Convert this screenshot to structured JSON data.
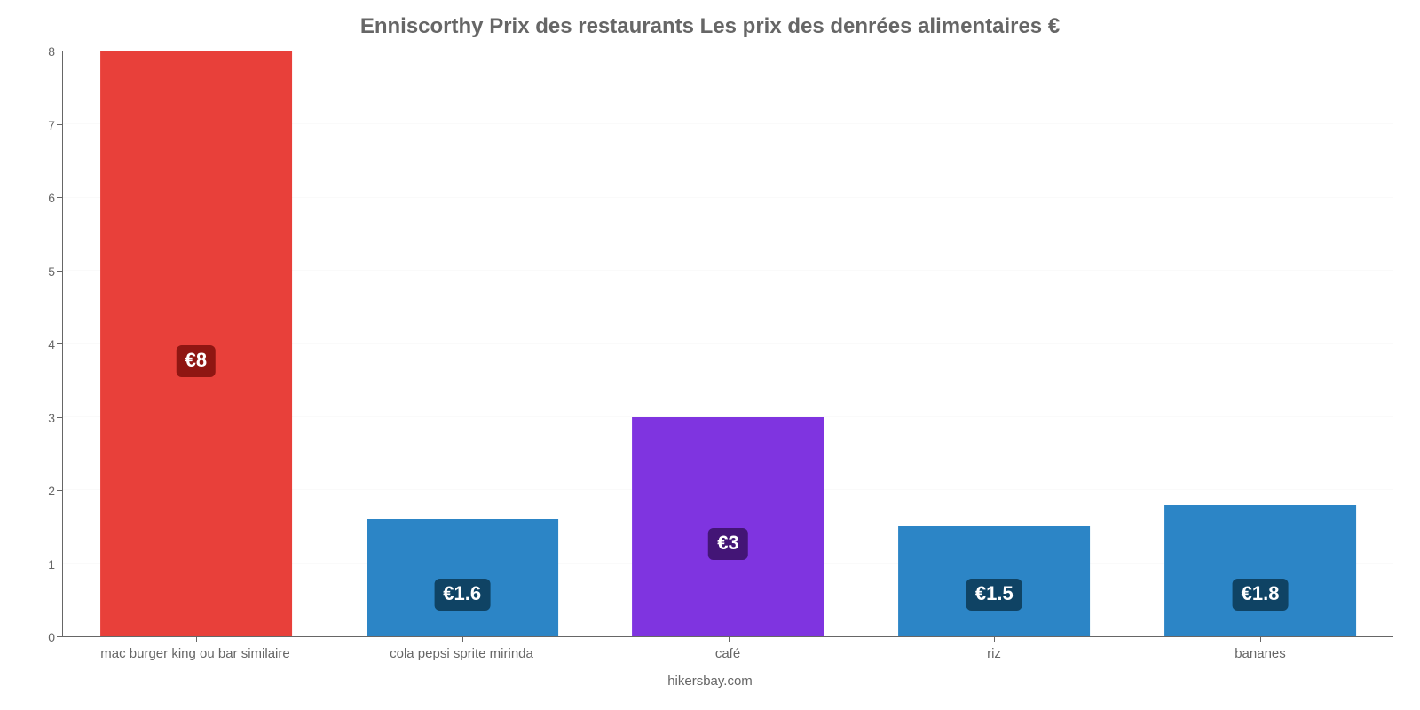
{
  "chart": {
    "type": "bar",
    "title": "Enniscorthy Prix des restaurants Les prix des denrées alimentaires €",
    "title_fontsize": 24,
    "title_color": "#666666",
    "attribution": "hikersbay.com",
    "attribution_fontsize": 15,
    "attribution_color": "#666666",
    "background_color": "#ffffff",
    "grid_color": "#fafafa",
    "axis_color": "#666666",
    "axis_label_color": "#666666",
    "axis_label_fontsize": 14,
    "ylim": [
      0,
      8
    ],
    "ytick_step": 1,
    "yticks": [
      "0",
      "1",
      "2",
      "3",
      "4",
      "5",
      "6",
      "7",
      "8"
    ],
    "bar_width_pct": 72,
    "value_badge_fontsize": 22,
    "value_badge_text_color": "#ffffff",
    "value_badge_radius": 6,
    "categories": [
      "mac burger king ou bar similaire",
      "cola pepsi sprite mirinda",
      "café",
      "riz",
      "bananes"
    ],
    "values": [
      8,
      1.6,
      3,
      1.5,
      1.8
    ],
    "value_labels": [
      "€8",
      "€1.6",
      "€3",
      "€1.5",
      "€1.8"
    ],
    "bar_colors": [
      "#e8403a",
      "#2c85c6",
      "#7f34e0",
      "#2c85c6",
      "#2c85c6"
    ],
    "badge_colors": [
      "#8f1612",
      "#0f4364",
      "#431576",
      "#0f4364",
      "#0f4364"
    ],
    "badge_offsets_value_units": [
      3.55,
      0.35,
      1.05,
      0.35,
      0.35
    ]
  }
}
